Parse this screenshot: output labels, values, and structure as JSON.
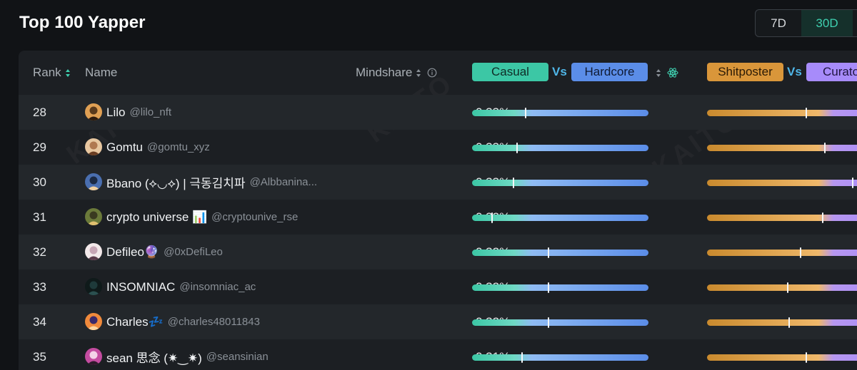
{
  "title": "Top 100 Yapper",
  "range_toggle": {
    "options": [
      "7D",
      "30D"
    ],
    "selected": "30D"
  },
  "watermark": "KAITO",
  "columns": {
    "rank": "Rank",
    "name": "Name",
    "mindshare": "Mindshare",
    "casual": "Casual",
    "vs1": "Vs",
    "hardcore": "Hardcore",
    "shitposter": "Shitposter",
    "vs2": "Vs",
    "curator": "Curato"
  },
  "colors": {
    "casual_pill": "#3cc7a5",
    "hardcore_pill": "#5b8de8",
    "shitposter_pill": "#d9963a",
    "curator_pill": "#a78bfa",
    "vs_text": "#4fb6e8",
    "accent": "#3fd0b0"
  },
  "rows": [
    {
      "rank": "28",
      "name": "Lilo",
      "handle": "@lilo_nft",
      "mindshare": "0.33%",
      "casual_marker": 0.3,
      "shit_marker": 0.53
    },
    {
      "rank": "29",
      "name": "Gomtu",
      "handle": "@gomtu_xyz",
      "mindshare": "0.33%",
      "casual_marker": 0.25,
      "shit_marker": 0.63
    },
    {
      "rank": "30",
      "name": "Bbano (⟡◡⟡) | 극동김치파",
      "handle": "@Albbanina...",
      "mindshare": "0.33%",
      "casual_marker": 0.23,
      "shit_marker": 0.78
    },
    {
      "rank": "31",
      "name": "crypto universe 📊",
      "handle": "@cryptounive_rse",
      "mindshare": "0.32%",
      "casual_marker": 0.11,
      "shit_marker": 0.62
    },
    {
      "rank": "32",
      "name": "Defileo🔮",
      "handle": "@0xDefiLeo",
      "mindshare": "0.32%",
      "casual_marker": 0.43,
      "shit_marker": 0.5
    },
    {
      "rank": "33",
      "name": "INSOMNIAC",
      "handle": "@insomniac_ac",
      "mindshare": "0.32%",
      "casual_marker": 0.43,
      "shit_marker": 0.43
    },
    {
      "rank": "34",
      "name": "Charles💤",
      "handle": "@charles48011843",
      "mindshare": "0.32%",
      "casual_marker": 0.43,
      "shit_marker": 0.44
    },
    {
      "rank": "35",
      "name": "sean 思念 (✷‿✷)",
      "handle": "@seansinian",
      "mindshare": "0.31%",
      "casual_marker": 0.28,
      "shit_marker": 0.53
    }
  ]
}
